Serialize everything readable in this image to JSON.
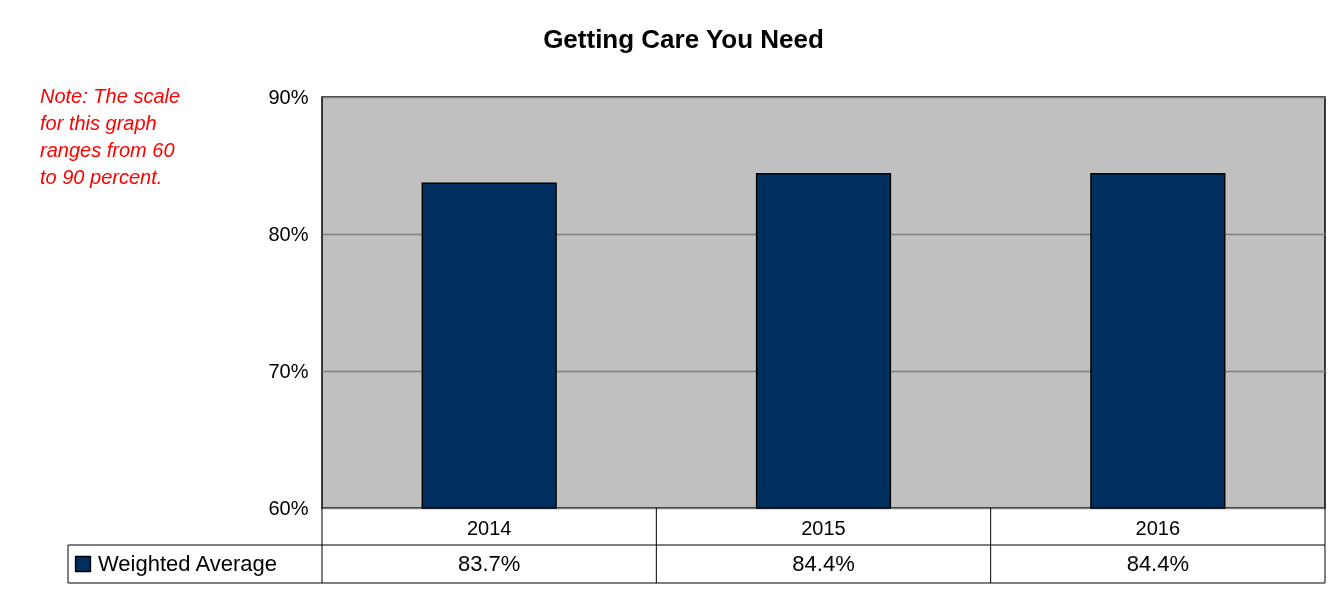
{
  "chart_data": {
    "type": "bar",
    "title": "Getting Care You Need",
    "categories": [
      "2014",
      "2015",
      "2016"
    ],
    "series": [
      {
        "name": "Weighted Average",
        "color": "#00305f",
        "values": [
          83.7,
          84.4,
          84.4
        ]
      }
    ],
    "value_labels": [
      "83.7%",
      "84.4%",
      "84.4%"
    ],
    "ylim": [
      60,
      90
    ],
    "yticks": [
      {
        "value": 60,
        "label": "60%"
      },
      {
        "value": 70,
        "label": "70%"
      },
      {
        "value": 80,
        "label": "80%"
      },
      {
        "value": 90,
        "label": "90%"
      }
    ],
    "grid": true,
    "legend": "bottom left",
    "annotations": [
      "Note: The scale for this graph ranges from 60 to 90 percent."
    ]
  }
}
